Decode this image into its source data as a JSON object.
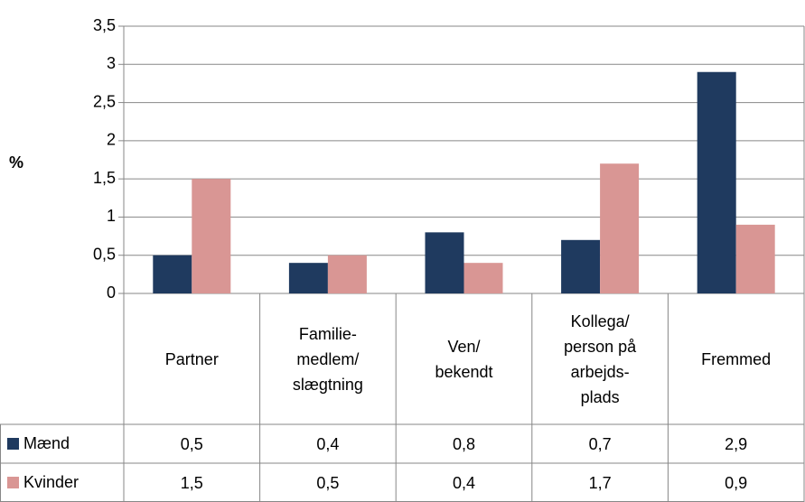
{
  "chart_data": {
    "type": "bar",
    "y_label": "%",
    "categories": [
      "Partner",
      "Familie-\nmedlem/\nslægtning",
      "Ven/\nbekendt",
      "Kollega/\nperson på\narbejds-\nplads",
      "Fremmed"
    ],
    "series": [
      {
        "name": "Mænd",
        "color": "#1f3a5f",
        "values": [
          0.5,
          0.4,
          0.8,
          0.7,
          2.9
        ],
        "value_labels": [
          "0,5",
          "0,4",
          "0,8",
          "0,7",
          "2,9"
        ]
      },
      {
        "name": "Kvinder",
        "color": "#d99694",
        "values": [
          1.5,
          0.5,
          0.4,
          1.7,
          0.9
        ],
        "value_labels": [
          "1,5",
          "0,5",
          "0,4",
          "1,7",
          "0,9"
        ]
      }
    ],
    "ylim": [
      0,
      3.5
    ],
    "yticks": [
      0,
      {
        "value": 0.5,
        "label": "0,5"
      },
      1,
      {
        "value": 1.5,
        "label": "1,5"
      },
      2,
      {
        "value": 2.5,
        "label": "2,5"
      },
      3,
      {
        "value": 3.5,
        "label": "3,5"
      }
    ],
    "grid": true
  }
}
